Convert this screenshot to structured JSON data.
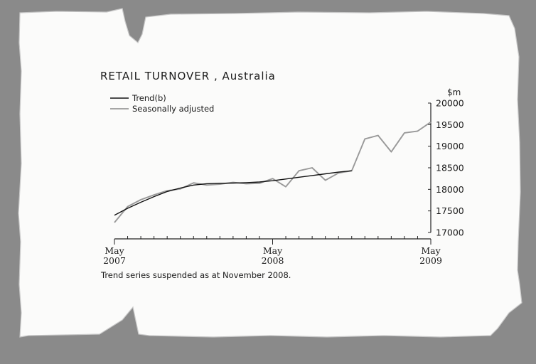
{
  "chart_data": {
    "type": "line",
    "title": "RETAIL TURNOVER , Australia",
    "ylabel": "$m",
    "ylim": [
      17000,
      20000
    ],
    "yticks": [
      "20000",
      "19500",
      "19000",
      "18500",
      "18000",
      "17500",
      "17000"
    ],
    "ytick_values": [
      20000,
      19500,
      19000,
      18500,
      18000,
      17500,
      17000
    ],
    "x_range": [
      0,
      24
    ],
    "xticks": [
      {
        "x": 0,
        "month": "May",
        "year": "2007"
      },
      {
        "x": 12,
        "month": "May",
        "year": "2008"
      },
      {
        "x": 24,
        "month": "May",
        "year": "2009"
      }
    ],
    "legend_position": "top-left",
    "grid": false,
    "series": [
      {
        "name": "Trend(b)",
        "color": "#111111",
        "x": [
          0,
          1,
          2,
          3,
          4,
          5,
          6,
          7,
          8,
          9,
          10,
          11,
          12,
          13,
          14,
          15,
          16,
          17,
          18
        ],
        "values": [
          17400,
          17560,
          17700,
          17830,
          17950,
          18030,
          18100,
          18130,
          18140,
          18145,
          18155,
          18170,
          18200,
          18240,
          18280,
          18320,
          18360,
          18400,
          18430
        ]
      },
      {
        "name": "Seasonally adjusted",
        "color": "#999999",
        "x": [
          0,
          1,
          2,
          3,
          4,
          5,
          6,
          7,
          8,
          9,
          10,
          11,
          12,
          13,
          14,
          15,
          16,
          17,
          18,
          19,
          20,
          21,
          22,
          23,
          24
        ],
        "values": [
          17230,
          17600,
          17760,
          17870,
          17970,
          18010,
          18150,
          18100,
          18120,
          18160,
          18130,
          18140,
          18250,
          18060,
          18430,
          18500,
          18210,
          18380,
          18430,
          19170,
          19250,
          18870,
          19310,
          19350,
          19560
        ]
      }
    ],
    "footnote": "Trend series suspended as at November 2008."
  }
}
